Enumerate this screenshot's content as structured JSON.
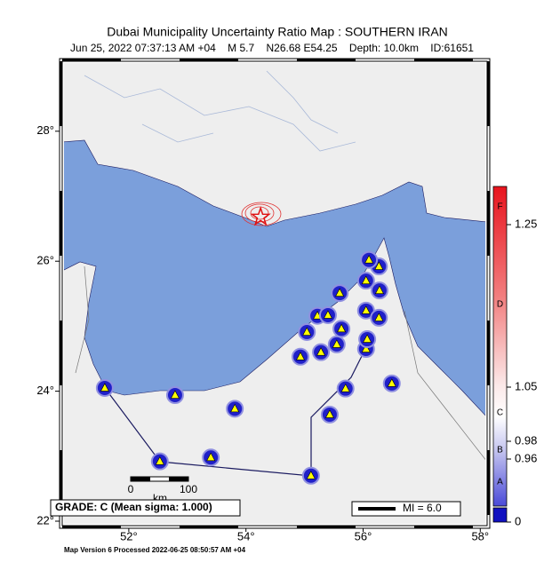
{
  "map": {
    "title": "Dubai Municipality Uncertainty Ratio Map : SOUTHERN IRAN",
    "subtitle": "Jun 25, 2022 07:37:13 AM +04    M 5.7    N26.68 E54.25    Depth: 10.0km    ID:61651",
    "lon_ticks": [
      {
        "value": 52,
        "label": "52°"
      },
      {
        "value": 54,
        "label": "54°"
      },
      {
        "value": 56,
        "label": "56°"
      },
      {
        "value": 58,
        "label": "58°"
      }
    ],
    "lat_ticks": [
      {
        "value": 22,
        "label": "22°"
      },
      {
        "value": 24,
        "label": "24°"
      },
      {
        "value": 26,
        "label": "26°"
      },
      {
        "value": 28,
        "label": "28°"
      }
    ],
    "epicenter": {
      "lon": 54.25,
      "lat": 26.68
    },
    "stations": [
      {
        "lon": 51.59,
        "lat": 24.05
      },
      {
        "lon": 52.79,
        "lat": 23.94
      },
      {
        "lon": 53.81,
        "lat": 23.73
      },
      {
        "lon": 53.4,
        "lat": 22.98
      },
      {
        "lon": 52.53,
        "lat": 22.92
      },
      {
        "lon": 55.11,
        "lat": 22.7
      },
      {
        "lon": 55.43,
        "lat": 23.64
      },
      {
        "lon": 55.7,
        "lat": 24.04
      },
      {
        "lon": 56.49,
        "lat": 24.12
      },
      {
        "lon": 54.93,
        "lat": 24.53
      },
      {
        "lon": 55.28,
        "lat": 24.6
      },
      {
        "lon": 55.55,
        "lat": 24.72
      },
      {
        "lon": 55.63,
        "lat": 24.96
      },
      {
        "lon": 55.04,
        "lat": 24.91
      },
      {
        "lon": 55.22,
        "lat": 25.16
      },
      {
        "lon": 55.4,
        "lat": 25.17
      },
      {
        "lon": 55.6,
        "lat": 25.51
      },
      {
        "lon": 56.05,
        "lat": 24.65
      },
      {
        "lon": 56.07,
        "lat": 24.8
      },
      {
        "lon": 56.05,
        "lat": 25.24
      },
      {
        "lon": 56.05,
        "lat": 25.7
      },
      {
        "lon": 56.27,
        "lat": 25.92
      },
      {
        "lon": 56.1,
        "lat": 26.02
      },
      {
        "lon": 56.27,
        "lat": 25.13
      },
      {
        "lon": 56.28,
        "lat": 25.55
      }
    ],
    "scale_bar": {
      "start": "0",
      "end": "100",
      "unit": "km"
    },
    "grade_box": "GRADE: C (Mean sigma: 1.000)",
    "mi_legend": "MI = 6.0",
    "footer": "Map Version 6 Processed 2022-06-25 08:50:57 AM +04",
    "colorbar": {
      "grades": [
        "F",
        "D",
        "C",
        "B",
        "A"
      ],
      "ticks": [
        1.25,
        1.05,
        0.98,
        0.96,
        0
      ]
    }
  }
}
